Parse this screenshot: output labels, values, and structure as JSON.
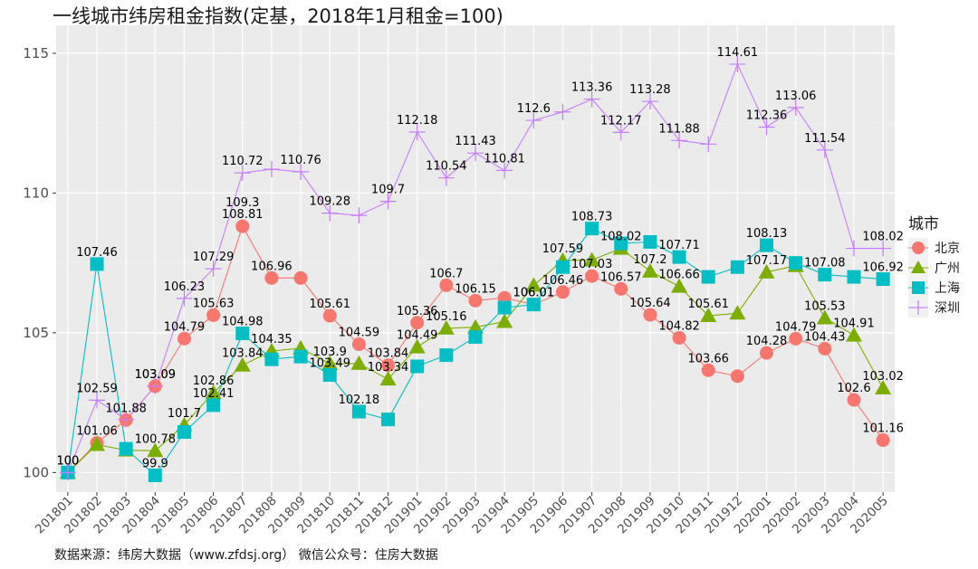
{
  "title": "一线城市纬房租金指数(定基，2018年1月租金=100)",
  "caption": "数据来源：纬房大数据（www.zfdsj.org） 微信公众号：住房大数据",
  "chart_data": {
    "type": "line",
    "title": "一线城市纬房租金指数(定基，2018年1月租金=100)",
    "xlabel": "",
    "ylabel": "",
    "ylim": [
      99.3,
      116.0
    ],
    "yticks": [
      100,
      105,
      110,
      115
    ],
    "grid": true,
    "legend_title": "城市",
    "legend_position": "right",
    "categories": [
      "201801",
      "201802",
      "201803",
      "201804",
      "201805",
      "201806",
      "201807",
      "201808",
      "201809",
      "201810",
      "201811",
      "201812",
      "201901",
      "201902",
      "201903",
      "201904",
      "201905",
      "201906",
      "201907",
      "201908",
      "201909",
      "201910",
      "201911",
      "201912",
      "202001",
      "202002",
      "202003",
      "202004",
      "202005"
    ],
    "series": [
      {
        "name": "北京",
        "color": "#F8766D",
        "marker": "circle",
        "values": [
          100,
          101.06,
          101.88,
          103.09,
          104.79,
          105.63,
          108.81,
          106.96,
          106.96,
          105.61,
          104.59,
          103.84,
          105.36,
          106.7,
          106.15,
          106.25,
          106.01,
          106.46,
          107.03,
          106.57,
          105.64,
          104.82,
          103.66,
          103.45,
          104.28,
          104.79,
          104.43,
          102.6,
          101.16
        ],
        "labels": [
          "100",
          "101.06",
          "101.88",
          "103.09",
          "104.79",
          "105.63",
          "108.81",
          "106.96",
          "",
          "105.61",
          "104.59",
          "103.84",
          "105.36",
          "106.7",
          "106.15",
          "",
          "106.01",
          "106.46",
          "107.03",
          "106.57",
          "105.64",
          "104.82",
          "103.66",
          "",
          "104.28",
          "104.79",
          "104.43",
          "102.6",
          "101.16"
        ]
      },
      {
        "name": "广州",
        "color": "#7CAE00",
        "marker": "triangle",
        "values": [
          100,
          101.0,
          100.8,
          100.78,
          101.7,
          102.86,
          103.84,
          104.35,
          104.45,
          103.9,
          103.9,
          103.34,
          104.49,
          105.16,
          105.2,
          105.4,
          106.7,
          107.59,
          107.6,
          108.02,
          107.2,
          106.66,
          105.61,
          105.7,
          107.17,
          107.4,
          105.53,
          104.91,
          103.02
        ],
        "labels": [
          "",
          "",
          "",
          "100.78",
          "101.7",
          "102.86",
          "103.84",
          "104.35",
          "",
          "103.9",
          "",
          "103.34",
          "104.49",
          "105.16",
          "",
          "",
          "",
          "107.59",
          "",
          "108.02",
          "107.2",
          "106.66",
          "105.61",
          "",
          "107.17",
          "",
          "105.53",
          "104.91",
          "103.02"
        ]
      },
      {
        "name": "上海",
        "color": "#00BFC4",
        "marker": "square",
        "values": [
          100,
          107.46,
          100.85,
          99.9,
          101.45,
          102.41,
          104.98,
          104.05,
          104.15,
          103.49,
          102.18,
          101.9,
          103.8,
          104.2,
          104.85,
          105.9,
          106.01,
          107.35,
          108.73,
          108.2,
          108.25,
          107.71,
          107.0,
          107.35,
          108.13,
          107.5,
          107.08,
          107.0,
          106.92
        ],
        "labels": [
          "",
          "107.46",
          "",
          "99.9",
          "",
          "102.41",
          "104.98",
          "",
          "",
          "103.49",
          "102.18",
          "",
          "",
          "",
          "",
          "",
          "106.01",
          "",
          "108.73",
          "",
          "",
          "107.71",
          "",
          "",
          "108.13",
          "",
          "107.08",
          "",
          "106.92"
        ]
      },
      {
        "name": "深圳",
        "color": "#C77CFF",
        "marker": "plus",
        "values": [
          100,
          102.59,
          101.9,
          103.09,
          106.23,
          107.29,
          110.72,
          110.85,
          110.76,
          109.28,
          109.2,
          109.7,
          112.18,
          110.54,
          111.43,
          110.81,
          112.6,
          112.9,
          113.36,
          112.17,
          113.28,
          111.88,
          111.75,
          114.61,
          112.36,
          113.06,
          111.54,
          108.02,
          108.02
        ],
        "labels": [
          "100",
          "102.59",
          "",
          "103.09",
          "106.23",
          "107.29",
          "110.72",
          "",
          "110.76",
          "109.28",
          "",
          "109.7",
          "112.18",
          "110.54",
          "111.43",
          "110.81",
          "112.6",
          "",
          "113.36",
          "112.17",
          "113.28",
          "111.88",
          "",
          "114.61",
          "112.36",
          "113.06",
          "111.54",
          "",
          "108.02"
        ]
      }
    ],
    "extra_labels": [
      "109.3"
    ]
  }
}
